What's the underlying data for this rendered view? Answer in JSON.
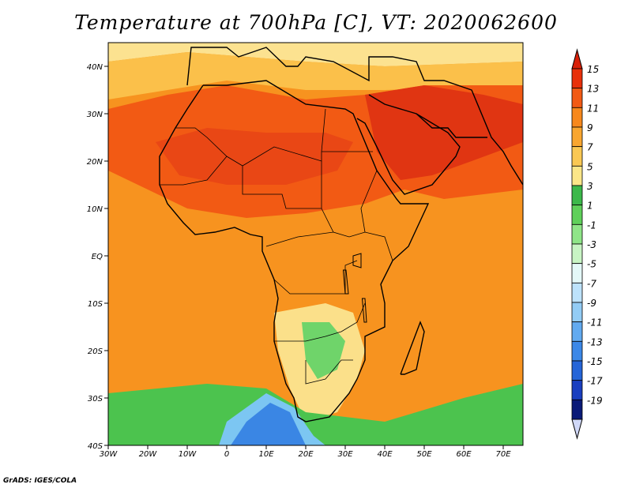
{
  "title": "Temperature at 700hPa [C], VT: 2020062600",
  "footer": "GrADS: IGES/COLA",
  "map": {
    "lon_ticks": [
      "30W",
      "20W",
      "10W",
      "0",
      "10E",
      "20E",
      "30E",
      "40E",
      "50E",
      "60E",
      "70E"
    ],
    "lat_ticks": [
      "40N",
      "30N",
      "20N",
      "10N",
      "EQ",
      "10S",
      "20S",
      "30S",
      "40S"
    ],
    "lon_range": [
      -30,
      75
    ],
    "lat_range": [
      -40,
      45
    ]
  },
  "colorbar": {
    "labels": [
      "15",
      "13",
      "11",
      "9",
      "7",
      "5",
      "3",
      "1",
      "-1",
      "-3",
      "-5",
      "-7",
      "-9",
      "-11",
      "-13",
      "-15",
      "-17",
      "-19"
    ],
    "colors": [
      "#e8300a",
      "#f25a14",
      "#f7881c",
      "#f9a630",
      "#fac853",
      "#fbe688",
      "#3cb84a",
      "#5fd05a",
      "#8fe588",
      "#c8f4c4",
      "#e4f8f8",
      "#bde2fb",
      "#93ccf5",
      "#62aaf0",
      "#3c88e8",
      "#2565d8",
      "#1a3fc0",
      "#0a1a78"
    ],
    "top_arrow_color": "#d82008",
    "bottom_arrow_color": "#d0d8f8"
  },
  "regions": [
    {
      "name": "ocean-background",
      "color": "#f7931f"
    },
    {
      "name": "north-africa-hot",
      "color": "#f25a14"
    },
    {
      "name": "arabia-hottest",
      "color": "#e03512"
    },
    {
      "name": "sahara-core",
      "color": "#e94715"
    },
    {
      "name": "mediterranean-warm",
      "color": "#fbc04a"
    },
    {
      "name": "europe-cool",
      "color": "#fce290"
    },
    {
      "name": "southern-africa-cool",
      "color": "#fbe08a"
    },
    {
      "name": "southern-africa-green",
      "color": "#6fd46a"
    },
    {
      "name": "southern-ocean-green",
      "color": "#4cc34e"
    },
    {
      "name": "southern-ocean-cold",
      "color": "#7cc6f2"
    },
    {
      "name": "southern-ocean-coldest",
      "color": "#3a86e4"
    }
  ]
}
